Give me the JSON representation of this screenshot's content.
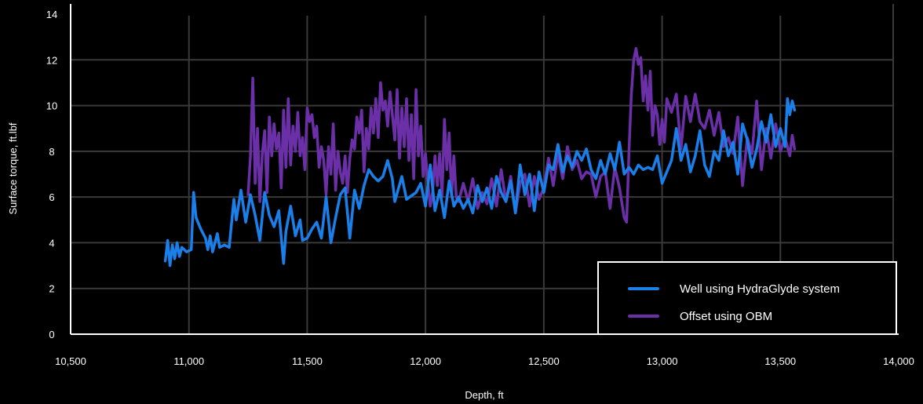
{
  "chart_data": {
    "type": "line",
    "xlabel": "Depth, ft",
    "ylabel": "Surface torque, ft.lbf",
    "xlim": [
      10500,
      14000
    ],
    "ylim": [
      0,
      14
    ],
    "x_ticks": [
      "10,500",
      "11,000",
      "11,500",
      "12,000",
      "12,500",
      "13,000",
      "13,500",
      "14,000"
    ],
    "y_ticks": [
      "0",
      "2",
      "4",
      "6",
      "8",
      "10",
      "12",
      "14"
    ],
    "grid": true,
    "legend_position": "bottom-right",
    "series": [
      {
        "name": "Well using HydraGlyde system",
        "color": "#1a7fe8",
        "points": [
          [
            10900,
            3.2
          ],
          [
            10910,
            4.1
          ],
          [
            10920,
            3.0
          ],
          [
            10930,
            3.9
          ],
          [
            10940,
            3.3
          ],
          [
            10950,
            4.0
          ],
          [
            10960,
            3.4
          ],
          [
            10970,
            3.8
          ],
          [
            10990,
            3.6
          ],
          [
            11010,
            3.7
          ],
          [
            11020,
            6.2
          ],
          [
            11030,
            5.1
          ],
          [
            11050,
            4.6
          ],
          [
            11070,
            4.2
          ],
          [
            11080,
            3.7
          ],
          [
            11090,
            4.3
          ],
          [
            11100,
            3.6
          ],
          [
            11120,
            4.4
          ],
          [
            11130,
            3.8
          ],
          [
            11150,
            3.9
          ],
          [
            11170,
            3.8
          ],
          [
            11190,
            5.9
          ],
          [
            11200,
            5.0
          ],
          [
            11220,
            6.3
          ],
          [
            11240,
            4.9
          ],
          [
            11260,
            6.1
          ],
          [
            11280,
            5.2
          ],
          [
            11300,
            4.1
          ],
          [
            11320,
            6.2
          ],
          [
            11340,
            5.2
          ],
          [
            11360,
            4.7
          ],
          [
            11380,
            5.4
          ],
          [
            11400,
            3.1
          ],
          [
            11410,
            4.5
          ],
          [
            11430,
            5.6
          ],
          [
            11450,
            4.3
          ],
          [
            11470,
            5.0
          ],
          [
            11480,
            4.1
          ],
          [
            11500,
            4.2
          ],
          [
            11520,
            4.6
          ],
          [
            11540,
            4.9
          ],
          [
            11560,
            4.2
          ],
          [
            11580,
            6.0
          ],
          [
            11600,
            4.0
          ],
          [
            11620,
            5.1
          ],
          [
            11640,
            6.1
          ],
          [
            11660,
            6.4
          ],
          [
            11680,
            4.2
          ],
          [
            11700,
            6.3
          ],
          [
            11720,
            5.5
          ],
          [
            11740,
            6.5
          ],
          [
            11760,
            7.2
          ],
          [
            11780,
            6.9
          ],
          [
            11800,
            6.7
          ],
          [
            11820,
            6.9
          ],
          [
            11840,
            7.6
          ],
          [
            11860,
            6.8
          ],
          [
            11870,
            5.8
          ],
          [
            11900,
            6.9
          ],
          [
            11920,
            5.9
          ],
          [
            11960,
            6.2
          ],
          [
            11980,
            6.6
          ],
          [
            12000,
            5.6
          ],
          [
            12020,
            7.4
          ],
          [
            12040,
            5.4
          ],
          [
            12060,
            6.3
          ],
          [
            12080,
            5.1
          ],
          [
            12100,
            6.7
          ],
          [
            12120,
            5.6
          ],
          [
            12140,
            6.0
          ],
          [
            12160,
            5.5
          ],
          [
            12180,
            5.9
          ],
          [
            12200,
            5.3
          ],
          [
            12220,
            6.5
          ],
          [
            12240,
            5.8
          ],
          [
            12260,
            6.4
          ],
          [
            12280,
            5.5
          ],
          [
            12300,
            6.9
          ],
          [
            12320,
            6.2
          ],
          [
            12340,
            5.8
          ],
          [
            12360,
            6.7
          ],
          [
            12380,
            5.3
          ],
          [
            12400,
            7.4
          ],
          [
            12420,
            6.1
          ],
          [
            12440,
            7.0
          ],
          [
            12460,
            5.4
          ],
          [
            12480,
            7.1
          ],
          [
            12500,
            6.2
          ],
          [
            12520,
            7.4
          ],
          [
            12540,
            7.2
          ],
          [
            12560,
            8.3
          ],
          [
            12580,
            7.1
          ],
          [
            12600,
            7.8
          ],
          [
            12620,
            7.3
          ],
          [
            12640,
            8.0
          ],
          [
            12660,
            7.6
          ],
          [
            12680,
            8.1
          ],
          [
            12700,
            7.2
          ],
          [
            12720,
            6.8
          ],
          [
            12740,
            7.6
          ],
          [
            12760,
            7.0
          ],
          [
            12780,
            7.9
          ],
          [
            12800,
            7.2
          ],
          [
            12820,
            8.4
          ],
          [
            12840,
            7.0
          ],
          [
            12860,
            7.3
          ],
          [
            12880,
            7.0
          ],
          [
            12900,
            7.4
          ],
          [
            12920,
            7.2
          ],
          [
            12940,
            7.3
          ],
          [
            12960,
            7.2
          ],
          [
            12980,
            7.8
          ],
          [
            13000,
            6.6
          ],
          [
            13020,
            7.1
          ],
          [
            13040,
            7.6
          ],
          [
            13060,
            9.0
          ],
          [
            13080,
            7.6
          ],
          [
            13100,
            8.3
          ],
          [
            13120,
            7.1
          ],
          [
            13140,
            7.8
          ],
          [
            13160,
            8.9
          ],
          [
            13180,
            7.4
          ],
          [
            13200,
            6.9
          ],
          [
            13220,
            8.0
          ],
          [
            13240,
            7.6
          ],
          [
            13260,
            8.9
          ],
          [
            13280,
            7.8
          ],
          [
            13300,
            8.4
          ],
          [
            13320,
            7.0
          ],
          [
            13340,
            9.2
          ],
          [
            13360,
            8.5
          ],
          [
            13380,
            7.3
          ],
          [
            13400,
            8.1
          ],
          [
            13420,
            9.3
          ],
          [
            13440,
            8.4
          ],
          [
            13460,
            9.6
          ],
          [
            13480,
            8.2
          ],
          [
            13500,
            9.0
          ],
          [
            13520,
            8.2
          ],
          [
            13530,
            10.3
          ],
          [
            13540,
            9.6
          ],
          [
            13550,
            10.2
          ],
          [
            13560,
            9.8
          ]
        ]
      },
      {
        "name": "Offset using OBM",
        "color": "#6b2fa8",
        "points": [
          [
            11250,
            6.1
          ],
          [
            11260,
            7.8
          ],
          [
            11270,
            11.2
          ],
          [
            11280,
            6.6
          ],
          [
            11290,
            9.0
          ],
          [
            11300,
            5.8
          ],
          [
            11310,
            7.9
          ],
          [
            11320,
            8.9
          ],
          [
            11330,
            6.2
          ],
          [
            11340,
            9.5
          ],
          [
            11350,
            7.8
          ],
          [
            11360,
            9.2
          ],
          [
            11370,
            8.1
          ],
          [
            11380,
            8.8
          ],
          [
            11390,
            6.4
          ],
          [
            11400,
            9.8
          ],
          [
            11410,
            7.3
          ],
          [
            11420,
            10.3
          ],
          [
            11430,
            7.4
          ],
          [
            11440,
            9.1
          ],
          [
            11450,
            8.0
          ],
          [
            11460,
            9.7
          ],
          [
            11470,
            7.8
          ],
          [
            11480,
            8.6
          ],
          [
            11490,
            7.2
          ],
          [
            11500,
            9.9
          ],
          [
            11510,
            9.3
          ],
          [
            11520,
            9.6
          ],
          [
            11530,
            8.6
          ],
          [
            11540,
            9.1
          ],
          [
            11550,
            7.3
          ],
          [
            11560,
            8.2
          ],
          [
            11570,
            7.6
          ],
          [
            11580,
            6.1
          ],
          [
            11590,
            8.2
          ],
          [
            11600,
            7.0
          ],
          [
            11610,
            9.2
          ],
          [
            11620,
            6.3
          ],
          [
            11630,
            8.0
          ],
          [
            11640,
            7.1
          ],
          [
            11650,
            6.6
          ],
          [
            11660,
            7.8
          ],
          [
            11670,
            6.2
          ],
          [
            11680,
            7.7
          ],
          [
            11690,
            8.5
          ],
          [
            11700,
            8.1
          ],
          [
            11710,
            9.5
          ],
          [
            11720,
            8.8
          ],
          [
            11730,
            9.8
          ],
          [
            11740,
            7.1
          ],
          [
            11750,
            9.0
          ],
          [
            11760,
            8.1
          ],
          [
            11770,
            9.9
          ],
          [
            11780,
            8.8
          ],
          [
            11790,
            10.3
          ],
          [
            11800,
            8.6
          ],
          [
            11810,
            11.0
          ],
          [
            11820,
            9.8
          ],
          [
            11830,
            10.2
          ],
          [
            11840,
            9.1
          ],
          [
            11850,
            10.6
          ],
          [
            11860,
            9.6
          ],
          [
            11870,
            8.5
          ],
          [
            11880,
            10.7
          ],
          [
            11890,
            7.7
          ],
          [
            11900,
            9.9
          ],
          [
            11910,
            8.2
          ],
          [
            11920,
            10.3
          ],
          [
            11930,
            7.6
          ],
          [
            11940,
            9.6
          ],
          [
            11950,
            6.8
          ],
          [
            11960,
            10.7
          ],
          [
            11970,
            7.8
          ],
          [
            11980,
            9.1
          ],
          [
            11990,
            6.9
          ],
          [
            12000,
            7.9
          ],
          [
            12010,
            6.6
          ],
          [
            12020,
            5.6
          ],
          [
            12030,
            6.2
          ],
          [
            12040,
            7.8
          ],
          [
            12050,
            6.5
          ],
          [
            12060,
            7.9
          ],
          [
            12070,
            6.0
          ],
          [
            12080,
            9.4
          ],
          [
            12090,
            7.2
          ],
          [
            12100,
            8.8
          ],
          [
            12110,
            6.0
          ],
          [
            12120,
            7.8
          ],
          [
            12130,
            6.0
          ],
          [
            12140,
            5.8
          ],
          [
            12160,
            6.6
          ],
          [
            12180,
            5.8
          ],
          [
            12200,
            6.8
          ],
          [
            12220,
            5.5
          ],
          [
            12240,
            6.2
          ],
          [
            12260,
            5.7
          ],
          [
            12280,
            6.8
          ],
          [
            12300,
            5.6
          ],
          [
            12320,
            7.2
          ],
          [
            12340,
            5.8
          ],
          [
            12360,
            6.9
          ],
          [
            12380,
            5.3
          ],
          [
            12400,
            6.6
          ],
          [
            12420,
            7.0
          ],
          [
            12440,
            5.6
          ],
          [
            12460,
            6.9
          ],
          [
            12480,
            5.9
          ],
          [
            12500,
            6.4
          ],
          [
            12520,
            7.7
          ],
          [
            12540,
            6.5
          ],
          [
            12560,
            7.9
          ],
          [
            12580,
            6.8
          ],
          [
            12600,
            8.2
          ],
          [
            12620,
            7.2
          ],
          [
            12640,
            7.6
          ],
          [
            12660,
            6.8
          ],
          [
            12680,
            7.1
          ],
          [
            12700,
            7.0
          ],
          [
            12720,
            6.0
          ],
          [
            12740,
            6.9
          ],
          [
            12760,
            7.1
          ],
          [
            12780,
            5.5
          ],
          [
            12800,
            7.3
          ],
          [
            12820,
            6.4
          ],
          [
            12840,
            5.1
          ],
          [
            12850,
            4.9
          ],
          [
            12860,
            8.0
          ],
          [
            12870,
            10.5
          ],
          [
            12880,
            12.0
          ],
          [
            12890,
            12.5
          ],
          [
            12900,
            11.8
          ],
          [
            12910,
            12.1
          ],
          [
            12920,
            10.2
          ],
          [
            12930,
            11.3
          ],
          [
            12940,
            9.8
          ],
          [
            12950,
            11.5
          ],
          [
            12960,
            8.7
          ],
          [
            12970,
            10.0
          ],
          [
            12980,
            9.6
          ],
          [
            12990,
            8.3
          ],
          [
            13000,
            9.4
          ],
          [
            13010,
            8.4
          ],
          [
            13020,
            10.3
          ],
          [
            13040,
            9.7
          ],
          [
            13060,
            10.5
          ],
          [
            13080,
            8.1
          ],
          [
            13100,
            10.4
          ],
          [
            13120,
            9.3
          ],
          [
            13140,
            10.5
          ],
          [
            13160,
            9.3
          ],
          [
            13180,
            9.0
          ],
          [
            13200,
            9.8
          ],
          [
            13220,
            8.7
          ],
          [
            13240,
            9.7
          ],
          [
            13260,
            8.2
          ],
          [
            13280,
            8.6
          ],
          [
            13300,
            7.9
          ],
          [
            13320,
            9.5
          ],
          [
            13340,
            6.5
          ],
          [
            13360,
            8.6
          ],
          [
            13380,
            7.9
          ],
          [
            13400,
            10.2
          ],
          [
            13420,
            7.2
          ],
          [
            13440,
            9.0
          ],
          [
            13460,
            7.7
          ],
          [
            13480,
            9.2
          ],
          [
            13500,
            8.0
          ],
          [
            13520,
            8.6
          ],
          [
            13540,
            7.8
          ],
          [
            13550,
            8.7
          ],
          [
            13560,
            8.1
          ]
        ]
      }
    ]
  }
}
